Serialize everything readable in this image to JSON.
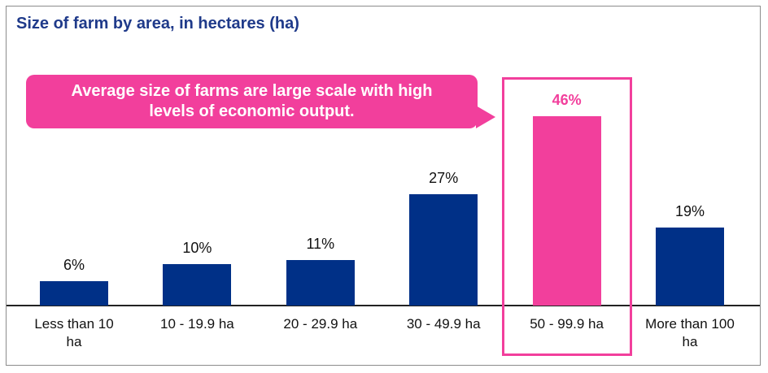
{
  "chart_data": {
    "type": "bar",
    "title": "Size of farm by area, in hectares (ha)",
    "annotation": "Average size of farms are large scale with high levels of economic output.",
    "categories": [
      "Less than 10 ha",
      "10 - 19.9 ha",
      "20 - 29.9 ha",
      "30 - 49.9 ha",
      "50 - 99.9 ha",
      "More than 100 ha"
    ],
    "values": [
      6,
      10,
      11,
      27,
      46,
      19
    ],
    "value_labels": [
      "6%",
      "10%",
      "11%",
      "27%",
      "46%",
      "19%"
    ],
    "colors": [
      "#003087",
      "#003087",
      "#003087",
      "#003087",
      "#f23f9c",
      "#003087"
    ],
    "highlight_color": "#f23f9c"
  }
}
